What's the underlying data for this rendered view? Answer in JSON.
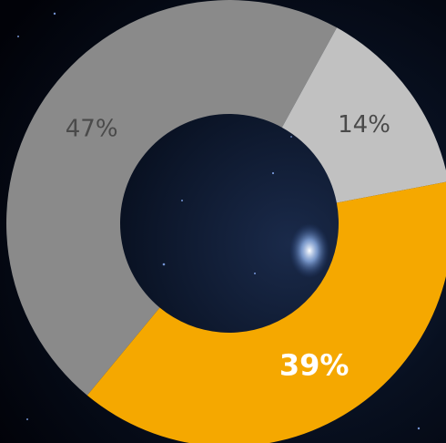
{
  "chart_data": {
    "type": "donut",
    "values": [
      47,
      14,
      39
    ],
    "value_labels": [
      "47%",
      "14%",
      "39%"
    ],
    "colors": [
      "#8a8a8a",
      "#c1c1c1",
      "#f5a800"
    ],
    "label_colors": [
      "#4a4a4a",
      "#4a4a4a",
      "#ffffff"
    ]
  }
}
